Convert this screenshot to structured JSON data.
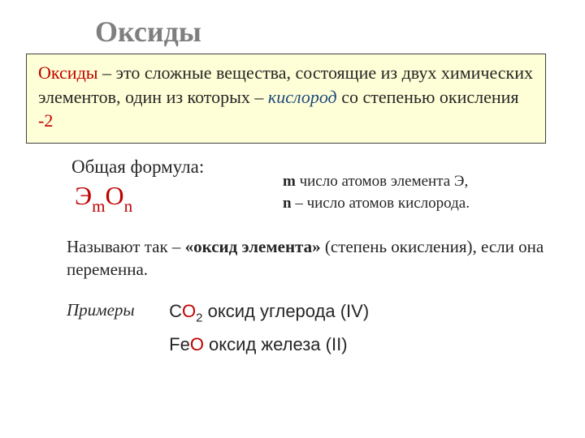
{
  "colors": {
    "title_gray": "#7f7f7f",
    "body_text": "#262626",
    "accent_red": "#c00000",
    "accent_blue": "#1f497d",
    "defbox_bg": "#feffd6",
    "defbox_border": "#404040",
    "background": "#ffffff"
  },
  "typography": {
    "title_fontsize": 36,
    "body_fontsize": 22,
    "formula_fontsize": 32,
    "legend_fontsize": 19,
    "examples_fontsize": 22
  },
  "title": "Оксиды",
  "definition": {
    "term": "Оксиды",
    "text_after_term": " – это сложные вещества, состоящие из двух химических элементов, один из которых – ",
    "emph": "кислород",
    "tail": " со степенью окисления ",
    "neg": "-2"
  },
  "formula_label": "Общая формула:",
  "formula": {
    "E": "Э",
    "m": "m",
    "O": "O",
    "n": "n"
  },
  "legend": {
    "m_key": "m",
    "m_text": " число атомов элемента Э,",
    "n_key": "n",
    "n_text": " – число атомов кислорода."
  },
  "naming": {
    "pre": "Называют  так – ",
    "strong": "«оксид элемента»",
    "tail": " (степень окисления), если она переменна."
  },
  "examples": {
    "label": "Примеры",
    "rows": [
      {
        "elem": "C",
        "o": "O",
        "sub": "2",
        "name": " оксид углерода (IV)"
      },
      {
        "elem": "Fe",
        "o": "O",
        "sub": "",
        "name": " оксид железа (II)"
      }
    ]
  }
}
